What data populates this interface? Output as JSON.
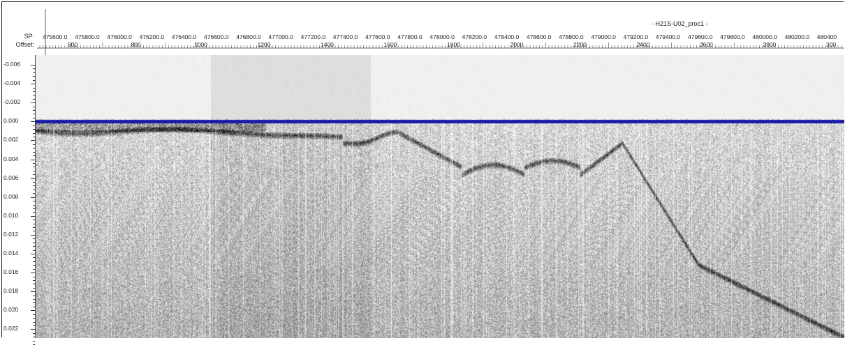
{
  "header": {
    "profile_title": "- H21S-U02_proc1 -",
    "sp_label": "SP:",
    "offset_label": "Offset:"
  },
  "shot_points": [
    "475600.0",
    "475800.0",
    "476000.0",
    "476200.0",
    "476400.0",
    "476600.0",
    "476800.0",
    "477000.0",
    "477200.0",
    "477400.0",
    "477600.0",
    "477800.0",
    "478000.0",
    "478200.0",
    "478400.0",
    "478600.0",
    "478800.0",
    "479000.0",
    "479200.0",
    "479400.0",
    "479600.0",
    "479800.0",
    "480000.0",
    "480200.0",
    "480400"
  ],
  "offsets": [
    "600",
    "800",
    "1000",
    "1200",
    "1400",
    "1600",
    "1800",
    "2000",
    "2200",
    "2400",
    "2600",
    "2800",
    "300"
  ],
  "depth_axis": {
    "labels": [
      "-0.006",
      "-0.004",
      "-0.002",
      "0.000",
      "0.002",
      "0.004",
      "0.006",
      "0.008",
      "0.010",
      "0.012",
      "0.014",
      "0.016",
      "0.018",
      "0.020",
      "0.022"
    ]
  },
  "colors": {
    "reference_line": "#1a1aa8",
    "reflector": "#151515",
    "background_noise": "#cfcfcf"
  }
}
